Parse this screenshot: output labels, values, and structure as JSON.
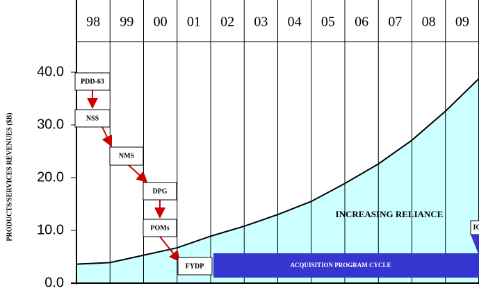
{
  "chart_data": {
    "type": "area",
    "ylabel": "PRODUCTS/SERVICES REVENUES ($B)",
    "categories": [
      "98",
      "99",
      "00",
      "01",
      "02",
      "03",
      "04",
      "05",
      "06",
      "07",
      "08",
      "09"
    ],
    "series": [
      {
        "color": "#000000",
        "fill": "#ccffff",
        "x": [
          0,
          1,
          2,
          3,
          4,
          5,
          6,
          7,
          8,
          9,
          10,
          11,
          12
        ],
        "values": [
          3.6,
          3.9,
          5.3,
          6.7,
          8.9,
          10.8,
          13.0,
          15.5,
          18.9,
          22.6,
          27.1,
          32.6,
          38.8
        ]
      }
    ],
    "xlim": [
      0,
      12
    ],
    "ylim": [
      0,
      40
    ],
    "yticks": [
      {
        "value": 0,
        "label": "0.0"
      },
      {
        "value": 10,
        "label": "10.0"
      },
      {
        "value": 20,
        "label": "20.0"
      },
      {
        "value": 30,
        "label": "30.0"
      },
      {
        "value": 40,
        "label": "40.0"
      }
    ],
    "annotations": [
      "PDD-63",
      "NSS",
      "NMS",
      "DPG",
      "POMs",
      "FYDP",
      "ACQUISITION PROGRAM CYCLE",
      "INCREASING RELIANCE",
      "IC"
    ]
  }
}
